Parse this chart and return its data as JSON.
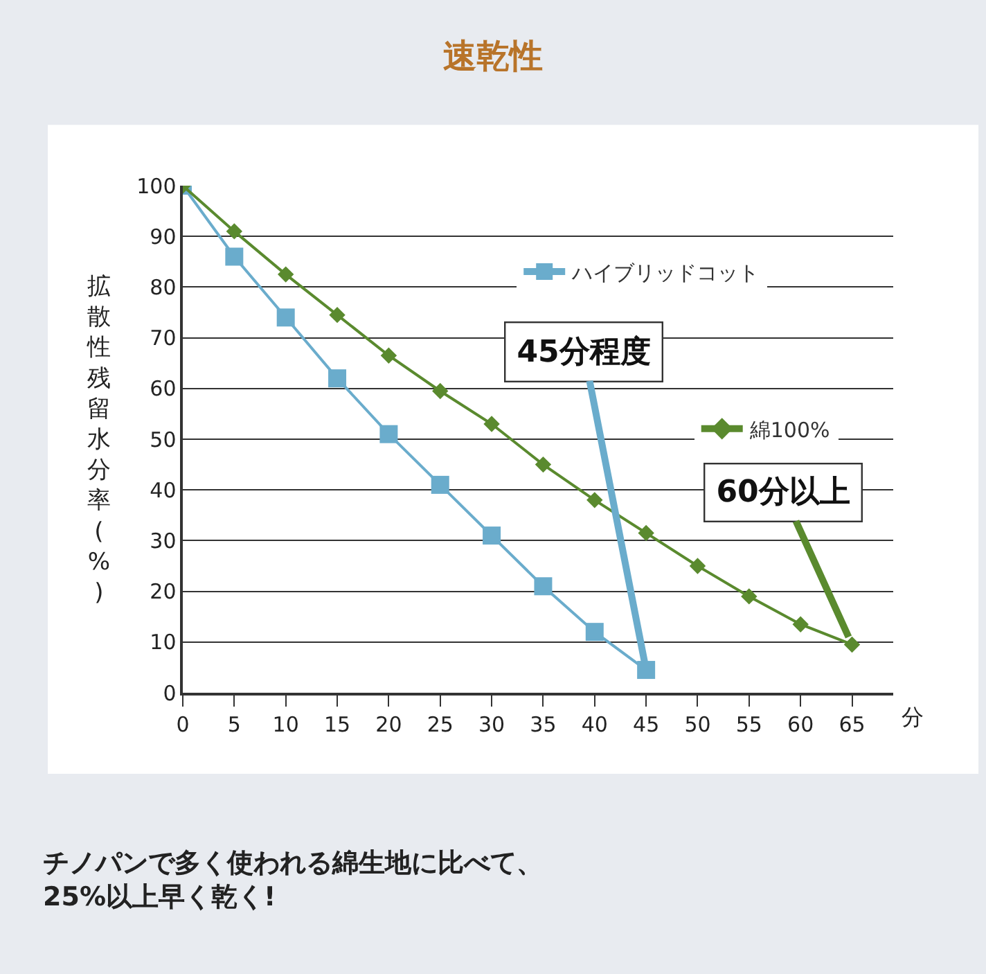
{
  "chart_data": {
    "type": "line",
    "title": "速乾性",
    "xlabel": "分",
    "ylabel": "拡散性残留水分率(%)",
    "x": [
      0,
      5,
      10,
      15,
      20,
      25,
      30,
      35,
      40,
      45,
      50,
      55,
      60,
      65
    ],
    "series": [
      {
        "name": "ハイブリッドコット",
        "color": "#6aaccc",
        "marker": "square",
        "values": [
          100,
          86,
          74,
          62,
          51,
          41,
          31,
          21,
          12,
          4.5,
          null,
          null,
          null,
          null
        ]
      },
      {
        "name": "綿100%",
        "color": "#5a8a2e",
        "marker": "diamond",
        "values": [
          100,
          91,
          82.5,
          74.5,
          66.5,
          59.5,
          53,
          45,
          38,
          31.5,
          25,
          19,
          13.5,
          9.5
        ]
      }
    ],
    "xlim": [
      0,
      69
    ],
    "xticks": [
      0,
      5,
      10,
      15,
      20,
      25,
      30,
      35,
      40,
      45,
      50,
      55,
      60,
      65
    ],
    "ylim": [
      0,
      100
    ],
    "yticks": [
      0,
      10,
      20,
      30,
      40,
      50,
      60,
      70,
      80,
      90,
      100
    ],
    "grid": "y",
    "legend": "top right",
    "annotations": [
      {
        "text": "45分程度",
        "x": 45,
        "y": 4.5
      },
      {
        "text": "60分以上",
        "x": 65,
        "y": 9.5
      },
      "チノパンで多く使われる綿生地に比べて、\n25%以上早く乾く!"
    ]
  }
}
